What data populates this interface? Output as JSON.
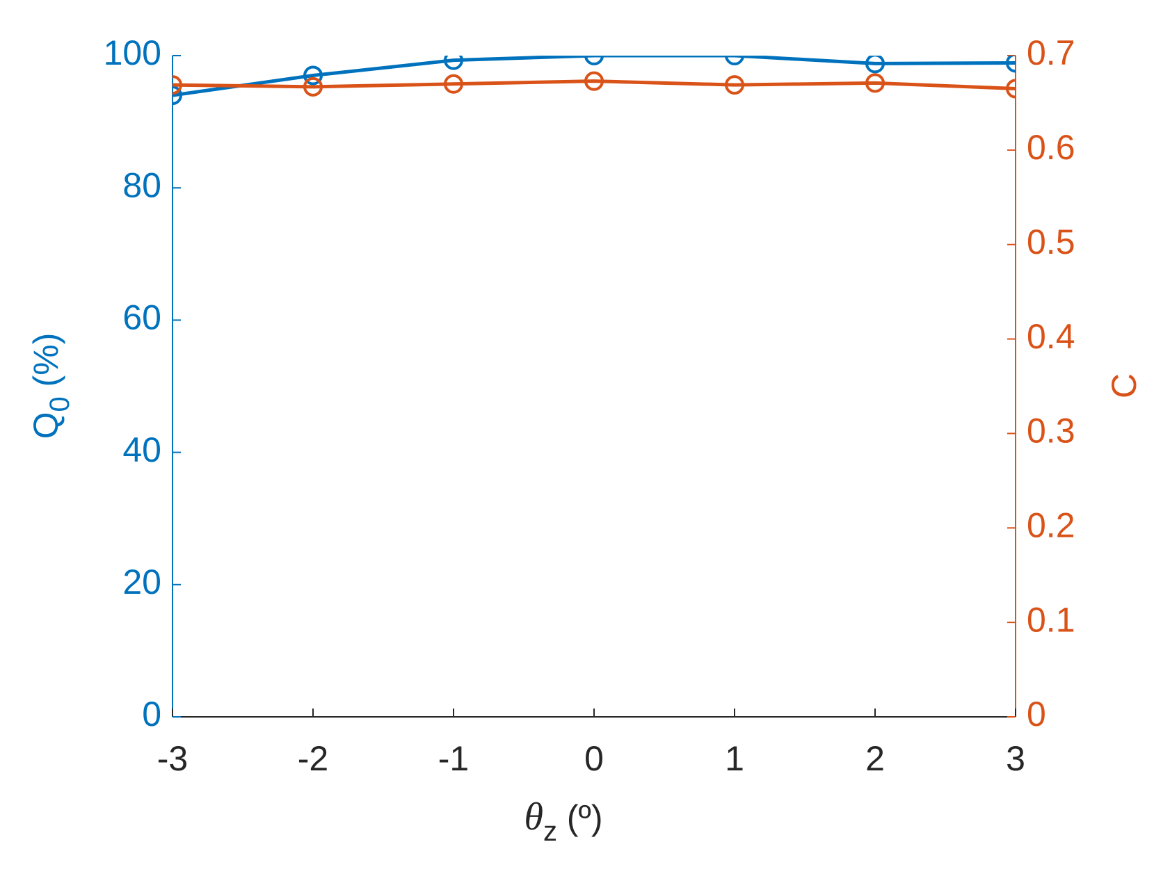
{
  "chart_data": {
    "type": "line",
    "x": [
      -3,
      -2,
      -1,
      0,
      1,
      2,
      3
    ],
    "xlim": [
      -3,
      3
    ],
    "xticks": [
      -3,
      -2,
      -1,
      0,
      1,
      2,
      3
    ],
    "xlabel_parts": [
      "θ",
      "z",
      " (º)"
    ],
    "ylabel_parts": [
      "Q",
      "0",
      " (%)"
    ],
    "y2label": "C",
    "ylim": [
      0,
      100
    ],
    "yticks": [
      0,
      20,
      40,
      60,
      80,
      100
    ],
    "y2lim": [
      0,
      0.7
    ],
    "y2ticks": [
      0,
      0.1,
      0.2,
      0.3,
      0.4,
      0.5,
      0.6,
      0.7
    ],
    "ycolor": "#0072BD",
    "y2color": "#D95319",
    "series": [
      {
        "color": "#0072BD",
        "values": [
          94.0,
          97.0,
          99.3,
          100,
          100,
          98.8,
          98.9
        ]
      },
      {
        "color": "#D95319",
        "axis": "y2",
        "values": [
          0.669,
          0.667,
          0.67,
          0.673,
          0.669,
          0.671,
          0.665
        ]
      }
    ]
  }
}
